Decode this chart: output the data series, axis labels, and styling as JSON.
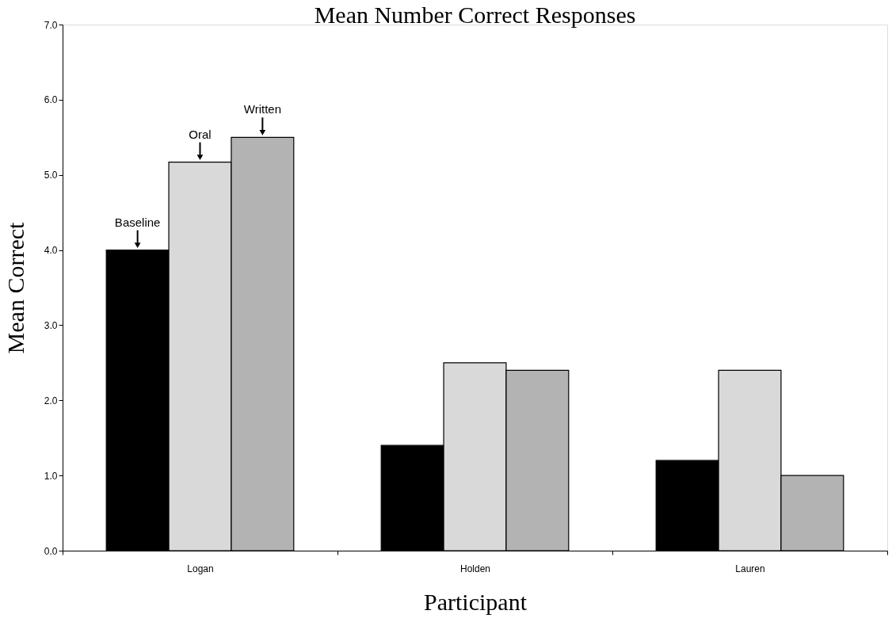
{
  "chart_data": {
    "type": "bar",
    "title": "Mean Number Correct Responses",
    "xlabel": "Participant",
    "ylabel": "Mean Correct",
    "categories": [
      "Logan",
      "Holden",
      "Lauren"
    ],
    "series": [
      {
        "name": "Baseline",
        "color": "#000000",
        "values": [
          4.0,
          1.4,
          1.2
        ]
      },
      {
        "name": "Oral",
        "color": "#d9d9d9",
        "values": [
          5.17,
          2.5,
          2.4
        ]
      },
      {
        "name": "Written",
        "color": "#b3b3b3",
        "values": [
          5.5,
          2.4,
          1.0
        ]
      }
    ],
    "ylim": [
      0,
      7
    ],
    "yticks": [
      {
        "value": 0,
        "label": "0.0"
      },
      {
        "value": 1,
        "label": "1.0"
      },
      {
        "value": 2,
        "label": "2.0"
      },
      {
        "value": 3,
        "label": "3.0"
      },
      {
        "value": 4,
        "label": "4.0"
      },
      {
        "value": 5,
        "label": "5.0"
      },
      {
        "value": 6,
        "label": "6.0"
      },
      {
        "value": 7,
        "label": "7.0"
      }
    ],
    "grid": false,
    "legend": false
  }
}
